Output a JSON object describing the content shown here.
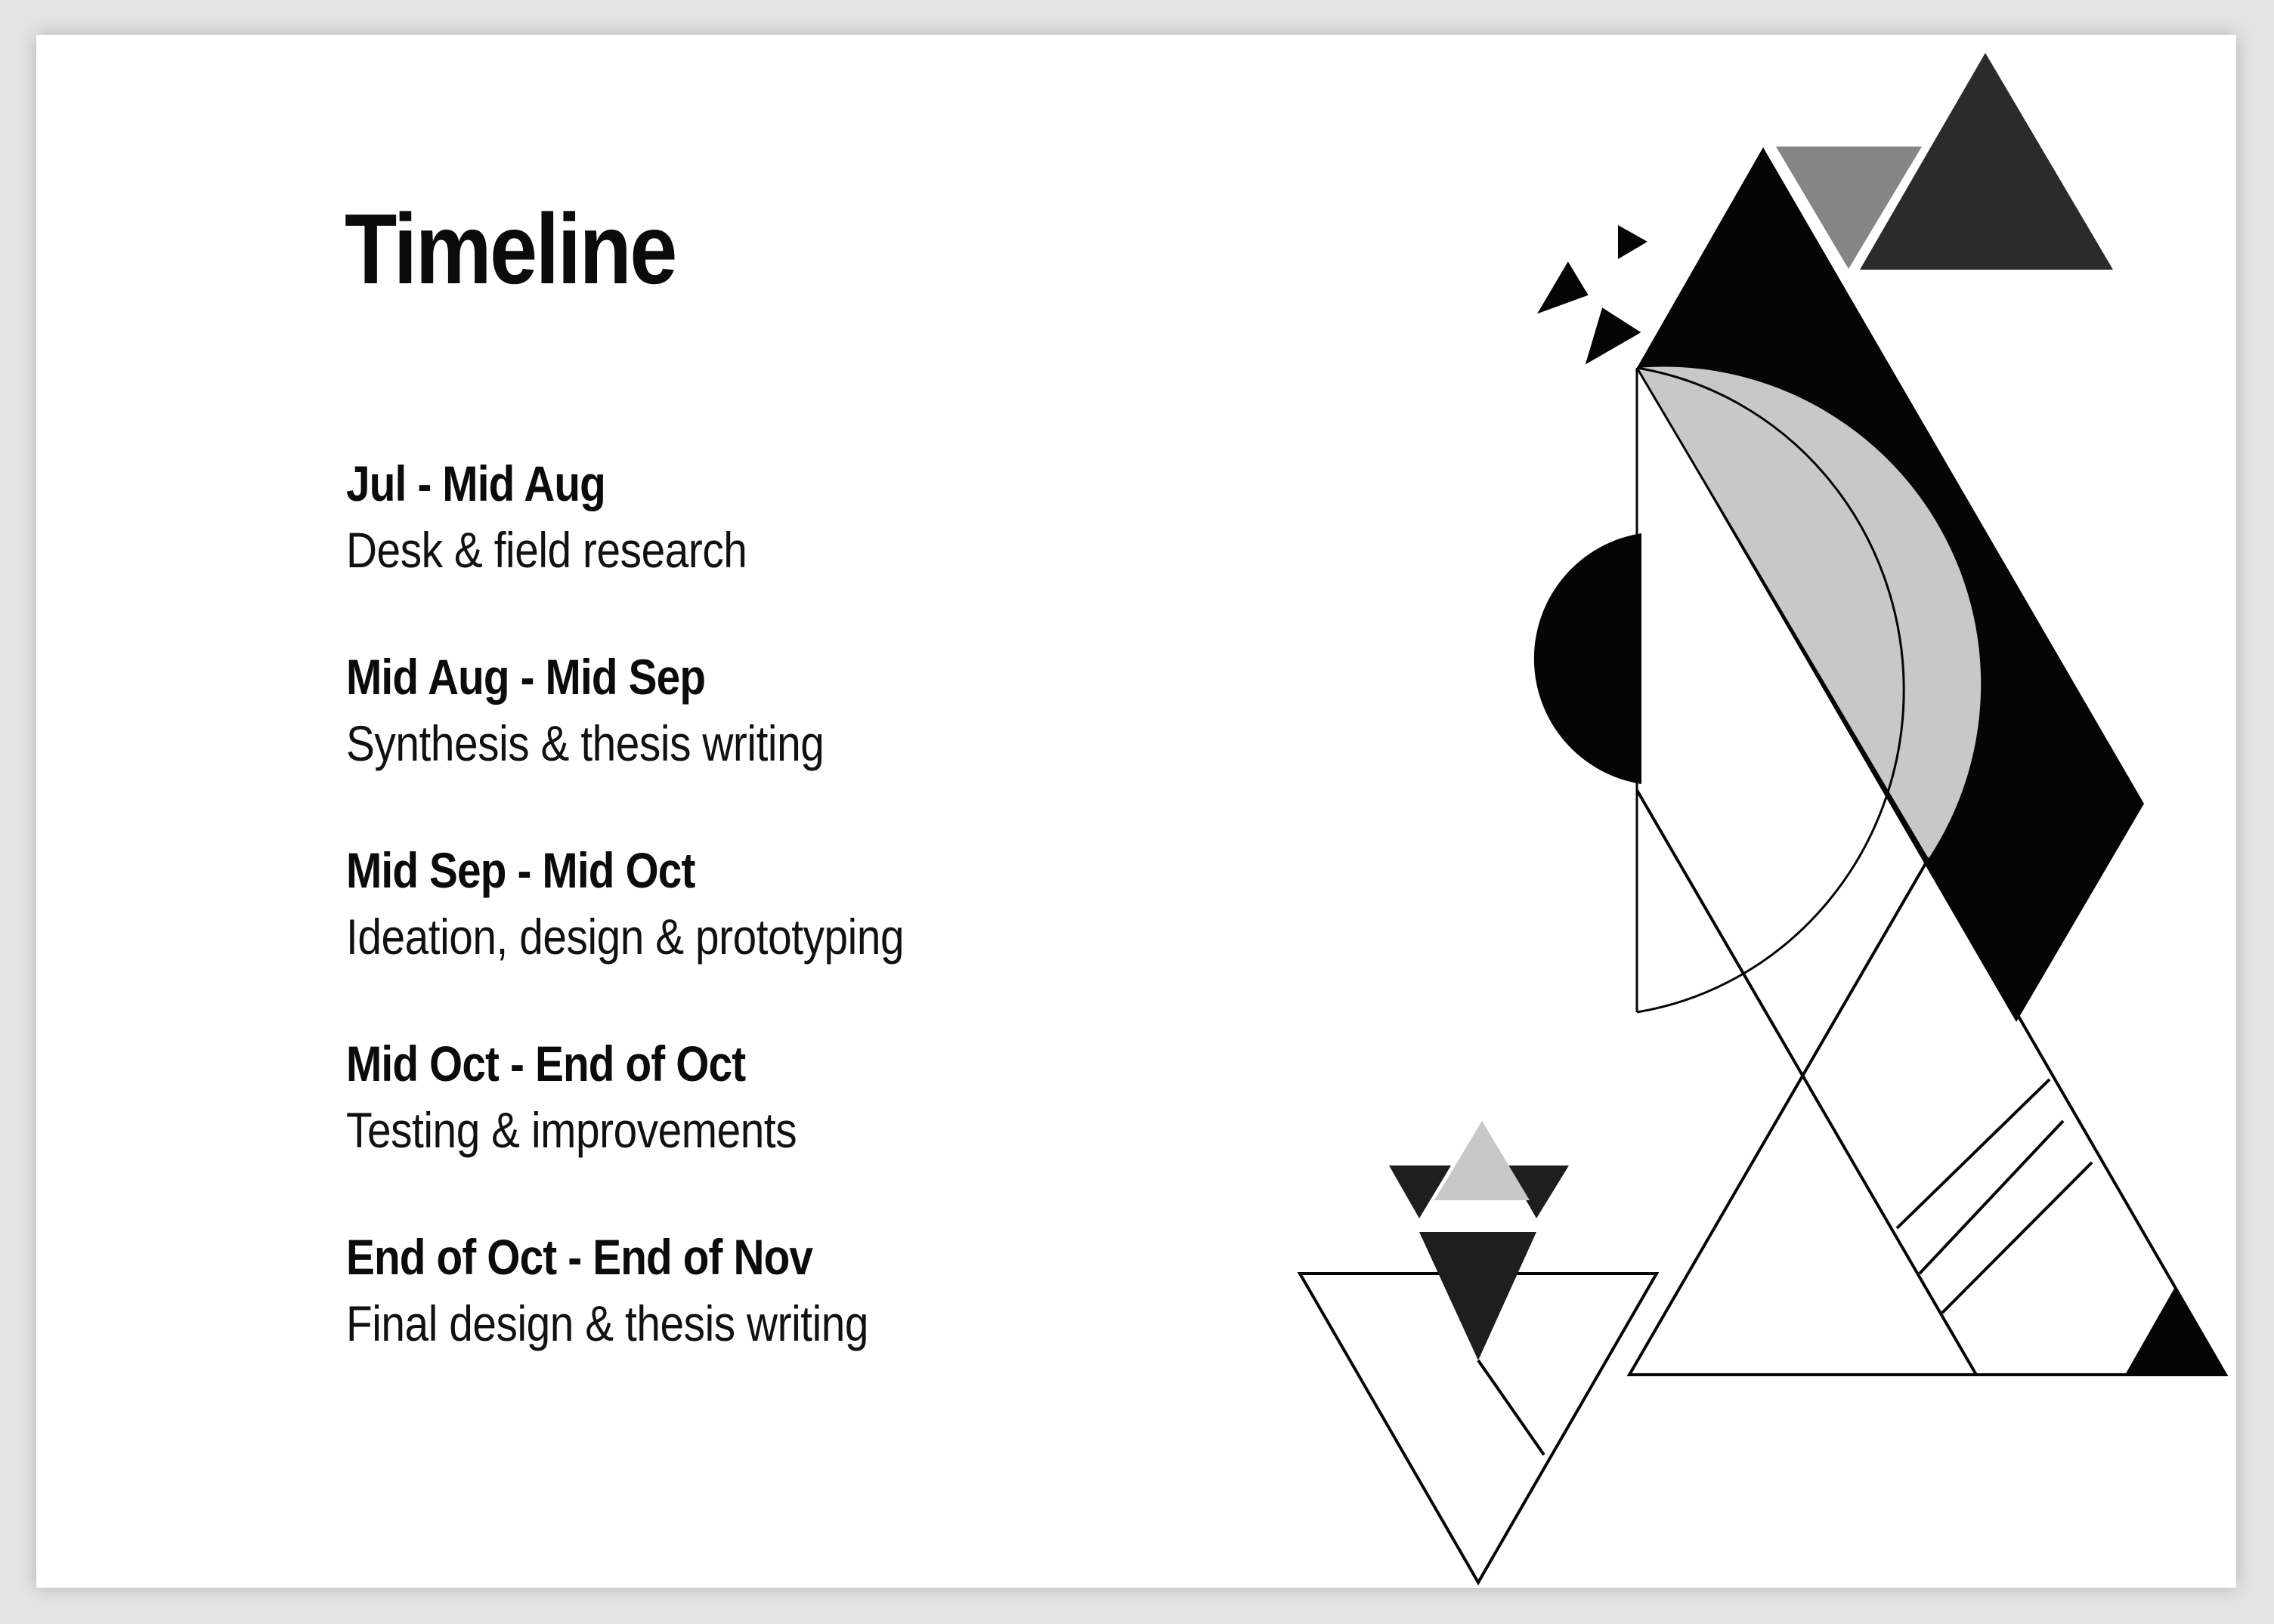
{
  "title": "Timeline",
  "entries": [
    {
      "period": "Jul - Mid Aug",
      "activity": "Desk & field research"
    },
    {
      "period": "Mid Aug - Mid Sep",
      "activity": "Synthesis & thesis writing"
    },
    {
      "period": "Mid Sep - Mid Oct",
      "activity": "Ideation, design & prototyping"
    },
    {
      "period": "Mid Oct - End of Oct",
      "activity": "Testing & improvements"
    },
    {
      "period": "End of Oct - End of Nov",
      "activity": "Final design & thesis writing"
    }
  ],
  "colors": {
    "background": "#e4e4e4",
    "slide": "#ffffff",
    "black": "#050505",
    "dark_gray": "#2b2b2b",
    "mid_gray": "#858585",
    "light_gray": "#c9c8c9"
  }
}
